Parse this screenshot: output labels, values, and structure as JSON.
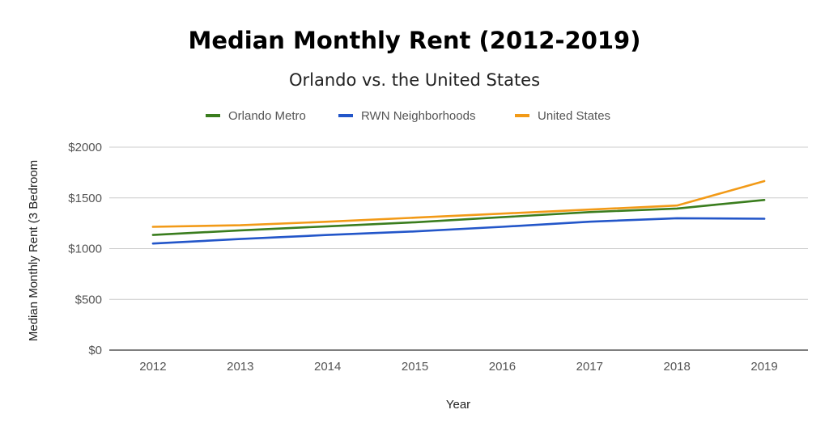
{
  "chart_data": {
    "type": "line",
    "title": "Median Monthly Rent (2012-2019)",
    "subtitle": "Orlando vs. the United States",
    "xlabel": "Year",
    "ylabel": "Median Monthly Rent (3 Bedroom",
    "categories": [
      "2012",
      "2013",
      "2014",
      "2015",
      "2016",
      "2017",
      "2018",
      "2019"
    ],
    "ylim": [
      0,
      2000
    ],
    "yticks": [
      0,
      500,
      1000,
      1500,
      2000
    ],
    "ytick_labels": [
      "$0",
      "$500",
      "$1000",
      "$1500",
      "$2000"
    ],
    "grid": true,
    "legend_position": "top",
    "series": [
      {
        "name": "Orlando Metro",
        "color": "#3a7d1e",
        "values": [
          1135,
          1180,
          1220,
          1260,
          1310,
          1360,
          1395,
          1480
        ]
      },
      {
        "name": "RWN Neighborhoods",
        "color": "#2356c9",
        "values": [
          1050,
          1095,
          1135,
          1170,
          1215,
          1265,
          1300,
          1295
        ]
      },
      {
        "name": "United States",
        "color": "#f29a17",
        "values": [
          1215,
          1230,
          1265,
          1305,
          1345,
          1385,
          1425,
          1665
        ]
      }
    ]
  }
}
